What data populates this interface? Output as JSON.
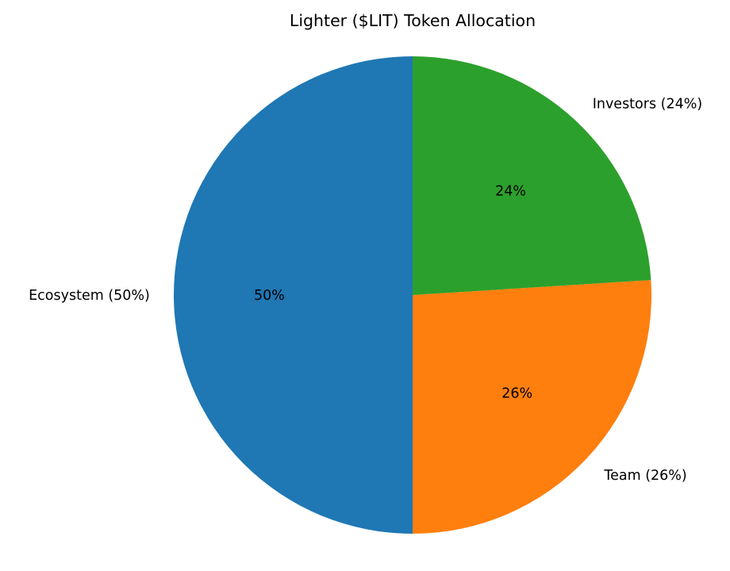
{
  "chart_data": {
    "type": "pie",
    "title": "Lighter ($LIT) Token Allocation",
    "slices": [
      {
        "label": "Ecosystem",
        "value": 50,
        "pct_label": "50%",
        "outer_label": "Ecosystem (50%)",
        "color": "#1f77b4"
      },
      {
        "label": "Team",
        "value": 26,
        "pct_label": "26%",
        "outer_label": "Team (26%)",
        "color": "#ff7f0e"
      },
      {
        "label": "Investors",
        "value": 24,
        "pct_label": "24%",
        "outer_label": "Investors (24%)",
        "color": "#2ca02c"
      }
    ],
    "start_angle_deg": 90,
    "direction": "counterclockwise",
    "label_distance": 1.1,
    "pct_distance": 0.6,
    "background_color": "#ffffff",
    "text_color": "#000000",
    "legend": "none",
    "grid": false
  }
}
